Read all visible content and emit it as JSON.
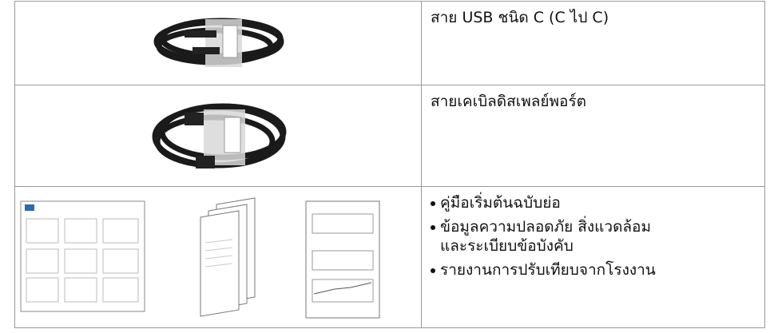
{
  "table": {
    "rows": [
      {
        "description": "สาย USB ชนิด C (C ไป C)"
      },
      {
        "description": "สายเคเบิลดิสเพลย์พอร์ต"
      },
      {
        "items": [
          "คู่มือเริ่มต้นฉบับย่อ",
          "ข้อมูลความปลอดภัย สิ่งแวดล้อม และระเบียบข้อบังคับ",
          "รายงานการปรับเทียบจากโรงงาน"
        ]
      }
    ]
  }
}
